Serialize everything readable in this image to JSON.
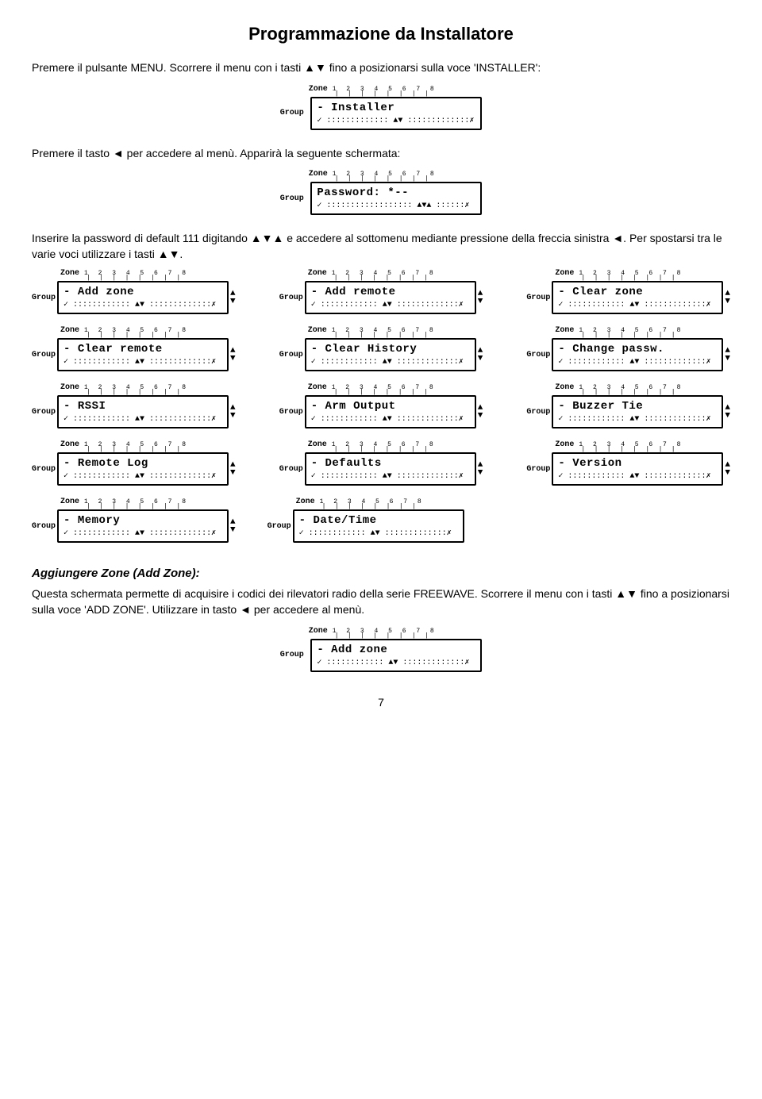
{
  "title": "Programmazione da Installatore",
  "para1_pre": "Premere il pulsante MENU. Scorrere il menu con i tasti ▲▼ fino a posizionarsi sulla voce 'INSTALLER':",
  "para2": "Premere il tasto ◄ per accedere al menù. Apparirà la seguente schermata:",
  "para3": "Inserire la password di default 111 digitando ▲▼▲ e accedere al sottomenu mediante pressione della freccia sinistra ◄. Per spostarsi tra le varie voci utilizzare i tasti ▲▼.",
  "zone_label": "Zone",
  "zone_nums": "1 2 3 4 5 6 7 8",
  "group_label": "Group",
  "screens": {
    "installer": {
      "l1": "- Installer",
      "l2": "✓ ::::::::::::: ▲▼ :::::::::::::✗"
    },
    "password": {
      "l1": "Password: *--",
      "l2": "✓ :::::::::::::::::: ▲▼▲ ::::::✗"
    },
    "addzone": {
      "l1": "- Add zone",
      "l2": "✓ :::::::::::: ▲▼ :::::::::::::✗"
    },
    "addremote": {
      "l1": "- Add remote",
      "l2": "✓ :::::::::::: ▲▼ :::::::::::::✗"
    },
    "clearzone": {
      "l1": "- Clear zone",
      "l2": "✓ :::::::::::: ▲▼ :::::::::::::✗"
    },
    "clearremote": {
      "l1": "- Clear remote",
      "l2": "✓ :::::::::::: ▲▼ :::::::::::::✗"
    },
    "clearhistory": {
      "l1": "- Clear History",
      "l2": "✓ :::::::::::: ▲▼ :::::::::::::✗"
    },
    "changepass": {
      "l1": "- Change passw.",
      "l2": "✓ :::::::::::: ▲▼ :::::::::::::✗"
    },
    "rssi": {
      "l1": "- RSSI",
      "l2": "✓ :::::::::::: ▲▼ :::::::::::::✗"
    },
    "armoutput": {
      "l1": "- Arm Output",
      "l2": "✓ :::::::::::: ▲▼ :::::::::::::✗"
    },
    "buzzer": {
      "l1": "- Buzzer Tie",
      "l2": "✓ :::::::::::: ▲▼ :::::::::::::✗"
    },
    "remotelog": {
      "l1": "- Remote Log",
      "l2": "✓ :::::::::::: ▲▼ :::::::::::::✗"
    },
    "defaults": {
      "l1": "- Defaults",
      "l2": "✓ :::::::::::: ▲▼ :::::::::::::✗"
    },
    "version": {
      "l1": "- Version",
      "l2": "✓ :::::::::::: ▲▼ :::::::::::::✗"
    },
    "memory": {
      "l1": "- Memory",
      "l2": "✓ :::::::::::: ▲▼ :::::::::::::✗"
    },
    "datetime": {
      "l1": "- Date/Time",
      "l2": "✓ :::::::::::: ▲▼ :::::::::::::✗"
    },
    "addzone2": {
      "l1": "- Add zone",
      "l2": "✓ :::::::::::: ▲▼ :::::::::::::✗"
    }
  },
  "subheading": "Aggiungere Zone (Add Zone):",
  "para4": "Questa schermata permette di acquisire i codici dei rilevatori radio della serie FREEWAVE. Scorrere il menu con i tasti ▲▼ fino a posizionarsi sulla voce 'ADD ZONE'. Utilizzare in tasto ◄ per accedere al menù.",
  "page_number": "7"
}
